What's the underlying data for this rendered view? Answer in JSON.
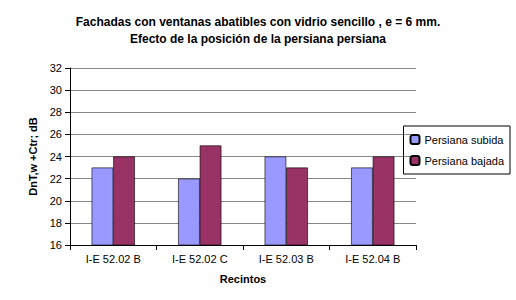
{
  "chart_data": {
    "type": "bar",
    "title": "Fachadas con ventanas abatibles con vidrio sencillo , e = 6 mm.\nEfecto de la posición de la persiana persiana",
    "x_label": "Recintos",
    "y_label": "DnT,w +Ctr; dB",
    "categories": [
      "I-E 52.02 B",
      "I-E 52.02 C",
      "I-E 52.03 B",
      "I-E 52.04 B"
    ],
    "series": [
      {
        "name": "Persiana subida",
        "color": "#9999ff",
        "values": [
          23,
          22,
          24,
          23
        ]
      },
      {
        "name": "Persiana bajada",
        "color": "#993366",
        "values": [
          24,
          25,
          23,
          24
        ]
      }
    ],
    "ylim": [
      16,
      32
    ],
    "yticks": [
      16,
      18,
      20,
      22,
      24,
      26,
      28,
      30,
      32
    ],
    "grid": true,
    "legend": "right"
  }
}
